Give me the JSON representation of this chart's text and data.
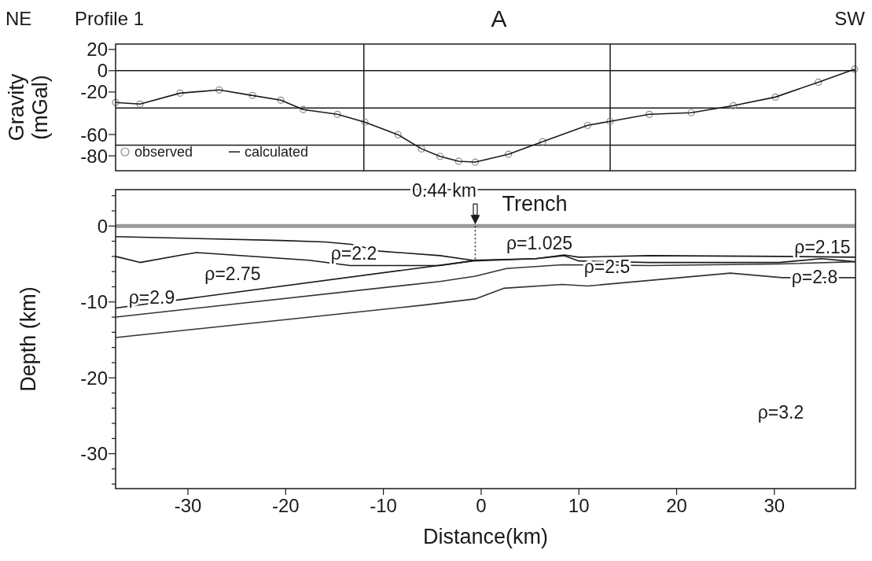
{
  "chart_data": [
    {
      "type": "line",
      "title": "A",
      "annotations": [
        "NE",
        "Profile 1",
        "SW"
      ],
      "ylabel": "Gravity (mGal)",
      "xlim": [
        -37.4,
        38.3
      ],
      "ylim": [
        -94,
        25
      ],
      "yticks": [
        20,
        0,
        -20,
        -60,
        -80
      ],
      "tick_labels": "y",
      "legend": "bottom left",
      "ref_lines": [
        {
          "axis": "y",
          "value": 0
        },
        {
          "axis": "y",
          "value": -35
        },
        {
          "axis": "y",
          "value": -70
        },
        {
          "axis": "x",
          "value": -12
        },
        {
          "axis": "x",
          "value": 13.2
        }
      ],
      "series": [
        {
          "name": "observed",
          "type": "scatter",
          "marker": "circle",
          "color": "#8a8a8a",
          "x": [
            -37.4,
            -34.9,
            -30.8,
            -26.8,
            -23.4,
            -20.5,
            -18.2,
            -14.7,
            -11.9,
            -8.5,
            -6.1,
            -4.2,
            -2.3,
            -0.6,
            2.8,
            6.3,
            10.9,
            13.2,
            17.2,
            21.5,
            25.8,
            30.1,
            34.5,
            38.2
          ],
          "values": [
            -29.9,
            -31.4,
            -21.1,
            -18.1,
            -23.3,
            -27.7,
            -36.5,
            -41,
            -48.3,
            -60.1,
            -73.4,
            -80.5,
            -85.1,
            -85.9,
            -78.5,
            -66.7,
            -51.3,
            -47.6,
            -41,
            -39.5,
            -32.9,
            -24.8,
            -10.8,
            1.4
          ]
        },
        {
          "name": "calculated",
          "color": "#1a1a1a",
          "x": [
            -37.4,
            -34.9,
            -30.8,
            -26.8,
            -23.4,
            -20.5,
            -18.2,
            -14.7,
            -11.9,
            -8.5,
            -6.1,
            -4.2,
            -2.3,
            -0.6,
            2.8,
            6.3,
            10.9,
            13.2,
            17.2,
            21.5,
            25.8,
            30.1,
            34.5,
            38.2
          ],
          "values": [
            -29.9,
            -31.4,
            -21.1,
            -18.1,
            -23.3,
            -27.7,
            -36.5,
            -41,
            -48.3,
            -60.1,
            -73.4,
            -80.5,
            -85.1,
            -85.9,
            -78.5,
            -66.7,
            -51.3,
            -47.6,
            -41,
            -39.5,
            -32.9,
            -24.8,
            -10.8,
            1.4
          ]
        }
      ]
    },
    {
      "type": "line",
      "xlabel": "Distance(km)",
      "ylabel": "Depth (km)",
      "xlim": [
        -37.4,
        38.3
      ],
      "ylim": [
        -34.6,
        4.8
      ],
      "xticks": [
        -30,
        -20,
        -10,
        0,
        10,
        20,
        30
      ],
      "yticks": [
        {
          "value": 4,
          "label": null
        },
        {
          "value": 2,
          "label": null
        },
        0,
        {
          "value": -2,
          "label": null
        },
        {
          "value": -4,
          "label": null
        },
        {
          "value": -6,
          "label": null
        },
        {
          "value": -8,
          "label": null
        },
        -10,
        {
          "value": -12,
          "label": null
        },
        {
          "value": -14,
          "label": null
        },
        {
          "value": -16,
          "label": null
        },
        {
          "value": -18,
          "label": null
        },
        -20,
        {
          "value": -22,
          "label": null
        },
        {
          "value": -24,
          "label": null
        },
        {
          "value": -26,
          "label": null
        },
        {
          "value": -28,
          "label": null
        },
        -30,
        {
          "value": -32,
          "label": null
        },
        {
          "value": -34,
          "label": null
        }
      ],
      "annotations": [
        "0.44 km",
        "Trench",
        "ρ=2.2",
        "ρ=2.75",
        "ρ=2.9",
        "ρ=1.025",
        "ρ=2.5",
        "ρ=2.15",
        "ρ=2.8",
        "ρ=3.2"
      ],
      "series": [
        {
          "color": "#9a9a9a",
          "x": [
            -37.4,
            38.3
          ],
          "values": [
            0,
            0
          ]
        },
        {
          "color": "#1a1a1a",
          "x": [
            -37.4,
            -20.5,
            -16,
            -13.3,
            -10.4,
            -4.2,
            -0.9,
            5.6,
            8.5,
            10,
            17.2,
            30.5,
            38.3
          ],
          "values": [
            -1.4,
            -1.9,
            -2.1,
            -2.4,
            -3.3,
            -3.9,
            -4.5,
            -4.3,
            -3.8,
            -4.1,
            -3.9,
            -4,
            -4.1
          ]
        },
        {
          "color": "#1a1a1a",
          "x": [
            -37.4,
            -34.9,
            -30.6,
            -29.1,
            -17.6,
            -13.4,
            -4.2,
            -0.9
          ],
          "values": [
            -4,
            -4.8,
            -3.8,
            -3.5,
            -4.5,
            -5.2,
            -5.2,
            -4.6
          ]
        },
        {
          "color": "#1a1a1a",
          "x": [
            -37.4,
            -30.2,
            -0.9,
            5.6,
            8.5,
            10,
            17.2,
            30.5,
            34.8,
            38.3
          ],
          "values": [
            -10.8,
            -9.6,
            -4.6,
            -4.3,
            -3.9,
            -4.6,
            -4.8,
            -4.8,
            -4.3,
            -4.7
          ]
        },
        {
          "color": "#333333",
          "x": [
            -37.4,
            -4.2,
            -0.6,
            2.6,
            8.3,
            17.2,
            30.5,
            38.3
          ],
          "values": [
            -12,
            -7.3,
            -6.6,
            -5.6,
            -5.1,
            -5.2,
            -5,
            -4.7
          ]
        },
        {
          "color": "#333333",
          "x": [
            -37.4,
            -5.8,
            -0.6,
            2.3,
            8.3,
            10.9,
            25.5,
            30.8,
            38.3
          ],
          "values": [
            -14.7,
            -10.4,
            -9.6,
            -8.2,
            -7.7,
            -7.9,
            -6.2,
            -6.8,
            -6.8
          ]
        },
        {
          "color": "#333333",
          "line_style": "dotted",
          "x": [
            -0.6,
            -0.6
          ],
          "values": [
            0,
            -4.6
          ]
        }
      ]
    }
  ]
}
